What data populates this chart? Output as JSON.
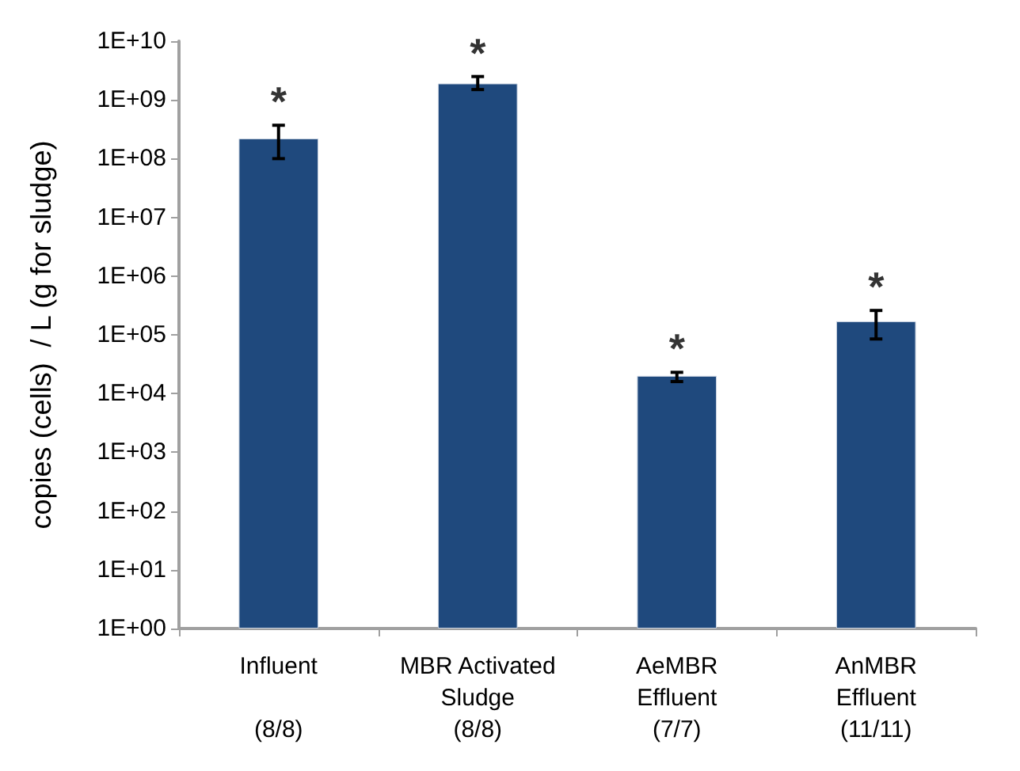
{
  "chart_data": {
    "type": "bar",
    "ylabel": "copies (cells)  / L (g for sludge)",
    "categories": [
      "Influent\n\n(8/8)",
      "MBR Activated\nSludge\n(8/8)",
      "AeMBR\nEffluent\n(7/7)",
      "AnMBR\nEffluent\n(11/11)"
    ],
    "values": [
      220000000,
      1900000000,
      20000,
      170000
    ],
    "errors": [
      [
        100000000,
        370000000
      ],
      [
        1500000000,
        2500000000
      ],
      [
        16000,
        23000
      ],
      [
        85000,
        260000
      ]
    ],
    "color": "#1f497d",
    "log": true,
    "ylim": [
      1,
      10000000000
    ],
    "yticks": [
      {
        "value": 1,
        "label": "1E+00"
      },
      {
        "value": 10,
        "label": "1E+01"
      },
      {
        "value": 100,
        "label": "1E+02"
      },
      {
        "value": 1000,
        "label": "1E+03"
      },
      {
        "value": 10000,
        "label": "1E+04"
      },
      {
        "value": 100000,
        "label": "1E+05"
      },
      {
        "value": 1000000,
        "label": "1E+06"
      },
      {
        "value": 10000000,
        "label": "1E+07"
      },
      {
        "value": 100000000,
        "label": "1E+08"
      },
      {
        "value": 1000000000,
        "label": "1E+09"
      },
      {
        "value": 10000000000,
        "label": "1E+10"
      }
    ],
    "annotations": [
      {
        "text": "*",
        "x": "Influent\n\n(8/8)",
        "y": 370000000
      },
      {
        "text": "*",
        "x": "MBR Activated\nSludge\n(8/8)",
        "y": 2500000000
      },
      {
        "text": "*",
        "x": "AeMBR\nEffluent\n(7/7)",
        "y": 23000
      },
      {
        "text": "*",
        "x": "AnMBR\nEffluent\n(11/11)",
        "y": 260000
      }
    ],
    "grid": false
  }
}
